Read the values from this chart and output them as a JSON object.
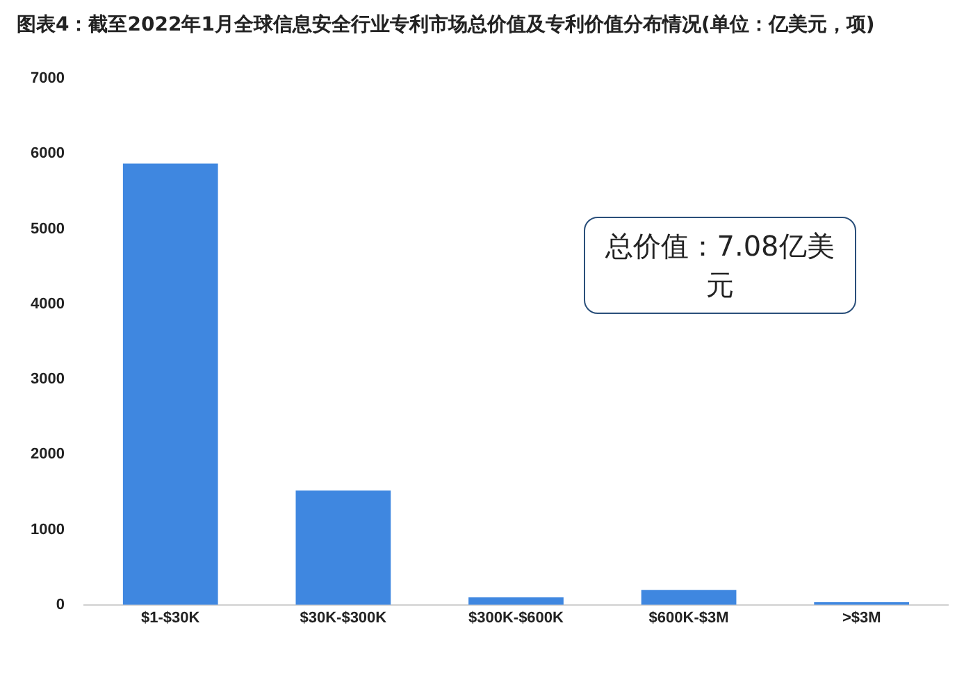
{
  "chart_data": {
    "type": "bar",
    "title": "图表4：截至2022年1月全球信息安全行业专利市场总价值及专利价值分布情况(单位：亿美元，项)",
    "categories": [
      "$1-$30K",
      "$30K-$300K",
      "$300K-$600K",
      "$600K-$3M",
      ">$3M"
    ],
    "values": [
      5870,
      1520,
      100,
      200,
      35
    ],
    "color": "#3f87e0",
    "ylim": [
      0,
      7000
    ],
    "yticks": [
      0,
      1000,
      2000,
      3000,
      4000,
      5000,
      6000,
      7000
    ],
    "grid": false,
    "annotations": [
      "总价值：7.08亿美元"
    ]
  }
}
